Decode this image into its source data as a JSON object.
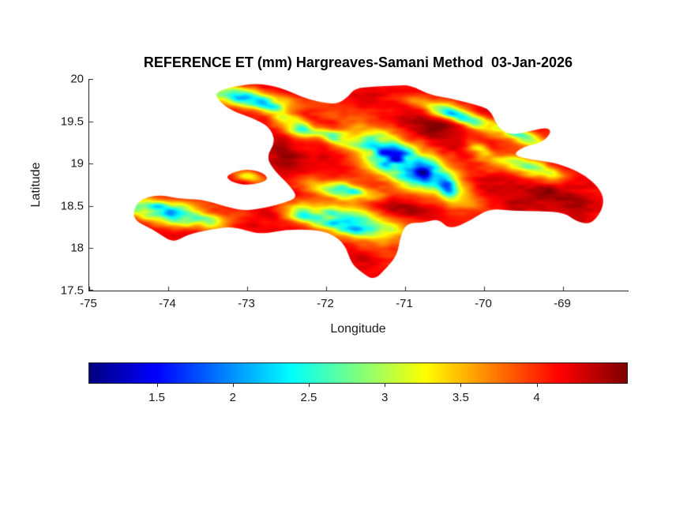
{
  "figure": {
    "title": "REFERENCE ET (mm) Hargreaves-Samani Method  03-Jan-2026",
    "background_color": "#ffffff",
    "axis_color": "#262626"
  },
  "axes": {
    "xlabel": "Longitude",
    "ylabel": "Latitude",
    "x_ticks": [
      {
        "value": -75,
        "label": "-75"
      },
      {
        "value": -74,
        "label": "-74"
      },
      {
        "value": -73,
        "label": "-73"
      },
      {
        "value": -72,
        "label": "-72"
      },
      {
        "value": -71,
        "label": "-71"
      },
      {
        "value": -70,
        "label": "-70"
      },
      {
        "value": -69,
        "label": "-69"
      }
    ],
    "y_ticks": [
      {
        "value": 20,
        "label": "20"
      },
      {
        "value": 19.5,
        "label": "19.5"
      },
      {
        "value": 19,
        "label": "19"
      },
      {
        "value": 18.5,
        "label": "18.5"
      },
      {
        "value": 18,
        "label": "18"
      },
      {
        "value": 17.5,
        "label": "17.5"
      }
    ]
  },
  "colorbar": {
    "orientation": "horizontal",
    "colormap": "jet",
    "range": [
      1.05,
      4.6
    ],
    "ticks": [
      {
        "value": 1.5,
        "label": "1.5"
      },
      {
        "value": 2,
        "label": "2"
      },
      {
        "value": 2.5,
        "label": "2.5"
      },
      {
        "value": 3,
        "label": "3"
      },
      {
        "value": 3.5,
        "label": "3.5"
      },
      {
        "value": 4,
        "label": "4"
      }
    ]
  },
  "chart_data": {
    "type": "heatmap",
    "title": "REFERENCE ET (mm) Hargreaves-Samani Method  03-Jan-2026",
    "variable": "Reference ET (mm)",
    "method": "Hargreaves-Samani",
    "date": "03-Jan-2026",
    "xlabel": "Longitude",
    "ylabel": "Latitude",
    "xlim": [
      -75,
      -68.17
    ],
    "ylim": [
      17.5,
      20
    ],
    "clim": [
      1.05,
      4.6
    ],
    "colormap": "jet",
    "grid": false,
    "legend": "horizontal colorbar below axes",
    "base_value": 4.15,
    "noise_amplitude": 0.5,
    "coastline": {
      "hispaniola": [
        [
          -73.42,
          19.84
        ],
        [
          -73.18,
          19.91
        ],
        [
          -72.88,
          19.95
        ],
        [
          -72.58,
          19.9
        ],
        [
          -72.32,
          19.79
        ],
        [
          -72.1,
          19.73
        ],
        [
          -71.86,
          19.7
        ],
        [
          -71.72,
          19.79
        ],
        [
          -71.64,
          19.89
        ],
        [
          -71.4,
          19.91
        ],
        [
          -71.12,
          19.92
        ],
        [
          -70.94,
          19.93
        ],
        [
          -70.68,
          19.81
        ],
        [
          -70.42,
          19.77
        ],
        [
          -70.12,
          19.7
        ],
        [
          -69.92,
          19.64
        ],
        [
          -69.84,
          19.45
        ],
        [
          -69.7,
          19.34
        ],
        [
          -69.46,
          19.37
        ],
        [
          -69.22,
          19.43
        ],
        [
          -69.14,
          19.38
        ],
        [
          -69.26,
          19.25
        ],
        [
          -69.5,
          19.2
        ],
        [
          -69.64,
          19.1
        ],
        [
          -69.42,
          19.05
        ],
        [
          -69.16,
          19.02
        ],
        [
          -68.94,
          18.96
        ],
        [
          -68.72,
          18.86
        ],
        [
          -68.55,
          18.72
        ],
        [
          -68.48,
          18.58
        ],
        [
          -68.52,
          18.42
        ],
        [
          -68.66,
          18.28
        ],
        [
          -68.84,
          18.32
        ],
        [
          -68.98,
          18.42
        ],
        [
          -69.3,
          18.44
        ],
        [
          -69.64,
          18.44
        ],
        [
          -69.94,
          18.47
        ],
        [
          -70.18,
          18.32
        ],
        [
          -70.44,
          18.22
        ],
        [
          -70.58,
          18.35
        ],
        [
          -70.76,
          18.3
        ],
        [
          -70.98,
          18.3
        ],
        [
          -71.06,
          18.14
        ],
        [
          -71.1,
          17.92
        ],
        [
          -71.24,
          17.76
        ],
        [
          -71.4,
          17.62
        ],
        [
          -71.56,
          17.72
        ],
        [
          -71.68,
          17.82
        ],
        [
          -71.76,
          18.04
        ],
        [
          -71.94,
          18.18
        ],
        [
          -72.18,
          18.22
        ],
        [
          -72.52,
          18.22
        ],
        [
          -72.84,
          18.16
        ],
        [
          -73.18,
          18.26
        ],
        [
          -73.48,
          18.22
        ],
        [
          -73.76,
          18.16
        ],
        [
          -73.94,
          18.06
        ],
        [
          -74.18,
          18.22
        ],
        [
          -74.46,
          18.34
        ],
        [
          -74.4,
          18.56
        ],
        [
          -74.12,
          18.64
        ],
        [
          -73.86,
          18.58
        ],
        [
          -73.58,
          18.58
        ],
        [
          -73.3,
          18.5
        ],
        [
          -73.04,
          18.44
        ],
        [
          -72.76,
          18.48
        ],
        [
          -72.52,
          18.54
        ],
        [
          -72.36,
          18.6
        ],
        [
          -72.46,
          18.74
        ],
        [
          -72.66,
          18.92
        ],
        [
          -72.76,
          19.08
        ],
        [
          -72.64,
          19.26
        ],
        [
          -72.72,
          19.44
        ],
        [
          -72.94,
          19.54
        ],
        [
          -73.18,
          19.62
        ],
        [
          -73.34,
          19.72
        ]
      ],
      "gonave": [
        [
          -73.28,
          18.86
        ],
        [
          -73.04,
          18.94
        ],
        [
          -72.8,
          18.9
        ],
        [
          -72.72,
          18.8
        ],
        [
          -72.98,
          18.74
        ],
        [
          -73.2,
          18.78
        ]
      ]
    },
    "low_et_zones": [
      {
        "lon": -73.05,
        "lat": 19.78,
        "sx": 0.36,
        "sy": 0.065,
        "rot": -8,
        "depth": 2.7
      },
      {
        "lon": -72.55,
        "lat": 19.58,
        "sx": 0.2,
        "sy": 0.05,
        "rot": -18,
        "depth": 1.4
      },
      {
        "lon": -72.33,
        "lat": 19.4,
        "sx": 0.18,
        "sy": 0.06,
        "rot": -12,
        "depth": 1.6
      },
      {
        "lon": -71.88,
        "lat": 19.3,
        "sx": 0.14,
        "sy": 0.055,
        "rot": -20,
        "depth": 1.3
      },
      {
        "lon": -71.1,
        "lat": 19.05,
        "sx": 0.42,
        "sy": 0.16,
        "rot": -28,
        "depth": 2.95
      },
      {
        "lon": -70.52,
        "lat": 18.78,
        "sx": 0.24,
        "sy": 0.1,
        "rot": -32,
        "depth": 2.2
      },
      {
        "lon": -71.8,
        "lat": 18.68,
        "sx": 0.3,
        "sy": 0.065,
        "rot": -8,
        "depth": 2.0
      },
      {
        "lon": -71.65,
        "lat": 18.3,
        "sx": 0.36,
        "sy": 0.11,
        "rot": -10,
        "depth": 2.85
      },
      {
        "lon": -72.32,
        "lat": 18.4,
        "sx": 0.16,
        "sy": 0.07,
        "rot": -10,
        "depth": 1.5
      },
      {
        "lon": -74.12,
        "lat": 18.44,
        "sx": 0.28,
        "sy": 0.09,
        "rot": -6,
        "depth": 2.6
      },
      {
        "lon": -73.52,
        "lat": 18.32,
        "sx": 0.22,
        "sy": 0.075,
        "rot": -8,
        "depth": 1.4
      },
      {
        "lon": -70.32,
        "lat": 19.56,
        "sx": 0.38,
        "sy": 0.065,
        "rot": -18,
        "depth": 1.9
      },
      {
        "lon": -69.46,
        "lat": 19.3,
        "sx": 0.2,
        "sy": 0.05,
        "rot": -16,
        "depth": 1.7
      },
      {
        "lon": -69.42,
        "lat": 18.94,
        "sx": 0.33,
        "sy": 0.075,
        "rot": -12,
        "depth": 1.7
      },
      {
        "lon": -70.05,
        "lat": 19.15,
        "sx": 0.14,
        "sy": 0.06,
        "rot": -25,
        "depth": 1.2
      },
      {
        "lon": -72.98,
        "lat": 18.85,
        "sx": 0.16,
        "sy": 0.045,
        "rot": -12,
        "depth": 1.1
      }
    ],
    "high_et_zones": [
      {
        "lon": -70.62,
        "lat": 19.42,
        "sx": 0.48,
        "sy": 0.11,
        "rot": -24,
        "depth": 0.35
      },
      {
        "lon": -69.05,
        "lat": 18.62,
        "sx": 0.42,
        "sy": 0.16,
        "rot": -5,
        "depth": 0.3
      },
      {
        "lon": -71.05,
        "lat": 18.49,
        "sx": 0.3,
        "sy": 0.07,
        "rot": -5,
        "depth": 0.32
      },
      {
        "lon": -72.52,
        "lat": 19.12,
        "sx": 0.22,
        "sy": 0.12,
        "rot": -70,
        "depth": 0.25
      }
    ]
  }
}
